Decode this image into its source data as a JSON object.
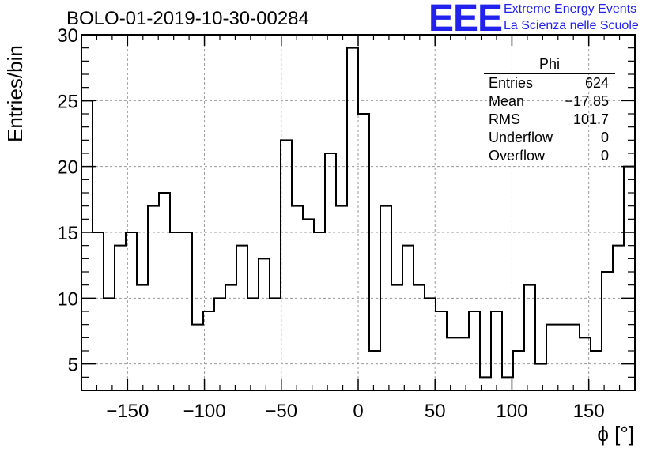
{
  "title": "BOLO-01-2019-10-30-00284",
  "logo": {
    "mark": "EEE",
    "line1": "Extreme Energy Events",
    "line2": "La Scienza nelle Scuole",
    "color": "#2222ee"
  },
  "stats": {
    "name": "Phi",
    "rows": [
      {
        "label": "Entries",
        "value": "624"
      },
      {
        "label": "Mean",
        "value": "−17.85"
      },
      {
        "label": "RMS",
        "value": "101.7"
      },
      {
        "label": "Underflow",
        "value": "0"
      },
      {
        "label": "Overflow",
        "value": "0"
      }
    ]
  },
  "chart_data": {
    "type": "bar",
    "style": "histogram-step",
    "xlabel": "ϕ [°]",
    "ylabel": "Entries/bin",
    "xlim": [
      -180,
      180
    ],
    "ylim": [
      3,
      30
    ],
    "bin_width": 7.2,
    "x_ticks": [
      -150,
      -100,
      -50,
      0,
      50,
      100,
      150
    ],
    "x_tick_labels": [
      "−150",
      "−100",
      "−50",
      "0",
      "50",
      "100",
      "150"
    ],
    "y_ticks": [
      5,
      10,
      15,
      20,
      25,
      30
    ],
    "grid": true,
    "values": [
      25,
      15,
      10,
      14,
      15,
      11,
      17,
      18,
      15,
      15,
      8,
      9,
      10,
      11,
      14,
      10,
      13,
      10,
      22,
      17,
      16,
      15,
      21,
      17,
      29,
      24,
      6,
      17,
      11,
      14,
      11,
      10,
      9,
      7,
      7,
      9,
      4,
      9,
      4,
      6,
      11,
      5,
      8,
      8,
      8,
      7,
      6,
      12,
      14,
      20
    ]
  }
}
